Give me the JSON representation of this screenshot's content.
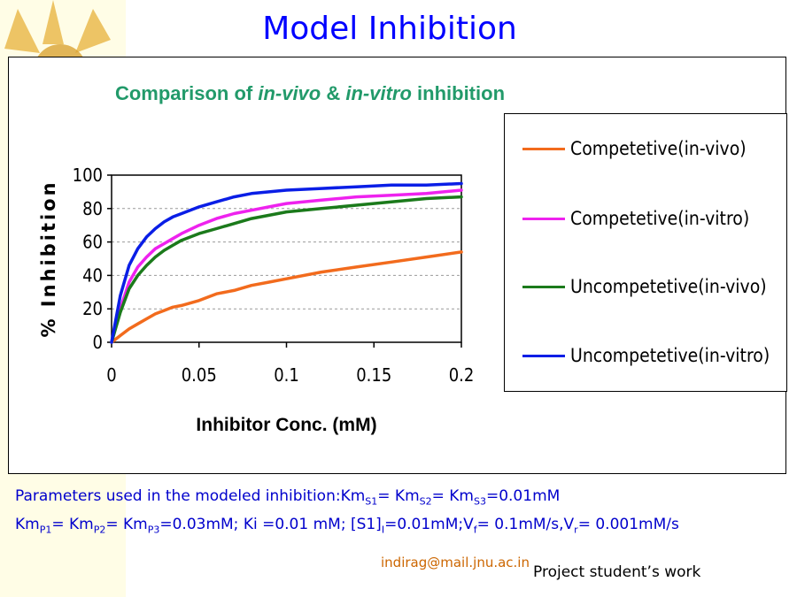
{
  "slide": {
    "title": "Model Inhibition",
    "params_line1": {
      "prefix": "Parameters used in the modeled inhibition:Km",
      "s1": "S1",
      "eq1": "= Km",
      "s2": "S2",
      "eq2": "= Km",
      "s3": "S3",
      "tail": "=0.01mM"
    },
    "params_line2": {
      "a": "Km",
      "p1": "P1",
      "b": "= Km",
      "p2": "P2",
      "c": "= Km",
      "p3": "P3",
      "d": "=0.03mM; Ki =0.01 mM; [S1]",
      "sub_i": "I",
      "e": "=0.01mM;V",
      "sub_f": "f",
      "f": "= 0.1mM/s,V",
      "sub_r": "r",
      "g": "= 0.001mM/s"
    },
    "email": "indirag@mail.jnu.ac.in",
    "credit": "Project student’s work"
  },
  "chart_data": {
    "type": "line",
    "title_parts": [
      "Comparison of ",
      "in-vivo",
      " & ",
      "in-vitro",
      " inhibition"
    ],
    "xlabel": "Inhibitor Conc. (mM)",
    "ylabel": "% Inhibition",
    "xlim": [
      0,
      0.2
    ],
    "ylim": [
      0,
      100
    ],
    "xticks": [
      0,
      0.05,
      0.1,
      0.15,
      0.2
    ],
    "xtick_labels": [
      "0",
      "0.05",
      "0.1",
      "0.15",
      "0.2"
    ],
    "yticks": [
      0,
      20,
      40,
      60,
      80,
      100
    ],
    "ytick_labels": [
      "0",
      "20",
      "40",
      "60",
      "80",
      "100"
    ],
    "grid": "horizontal",
    "legend_position": "right",
    "x": [
      0,
      0.005,
      0.01,
      0.015,
      0.02,
      0.025,
      0.03,
      0.035,
      0.04,
      0.05,
      0.06,
      0.07,
      0.08,
      0.09,
      0.1,
      0.12,
      0.14,
      0.16,
      0.18,
      0.2
    ],
    "series": [
      {
        "name": "Competetive(in-vivo)",
        "color": "#f26b1d",
        "values": [
          0,
          4,
          8,
          11,
          14,
          17,
          19,
          21,
          22,
          25,
          29,
          31,
          34,
          36,
          38,
          42,
          45,
          48,
          51,
          54
        ]
      },
      {
        "name": "Competetive(in-vitro)",
        "color": "#ee22ee",
        "values": [
          0,
          20,
          36,
          45,
          51,
          56,
          59,
          62,
          65,
          70,
          74,
          77,
          79,
          81,
          83,
          85,
          87,
          88,
          89,
          91
        ]
      },
      {
        "name": "Uncompetetive(in-vivo)",
        "color": "#1b7a1b",
        "values": [
          0,
          18,
          32,
          40,
          46,
          51,
          55,
          58,
          61,
          65,
          68,
          71,
          74,
          76,
          78,
          80,
          82,
          84,
          86,
          87
        ]
      },
      {
        "name": "Uncompetetive(in-vitro)",
        "color": "#0a1ee6",
        "values": [
          0,
          28,
          46,
          56,
          63,
          68,
          72,
          75,
          77,
          81,
          84,
          87,
          89,
          90,
          91,
          92,
          93,
          94,
          94,
          95
        ]
      }
    ]
  }
}
